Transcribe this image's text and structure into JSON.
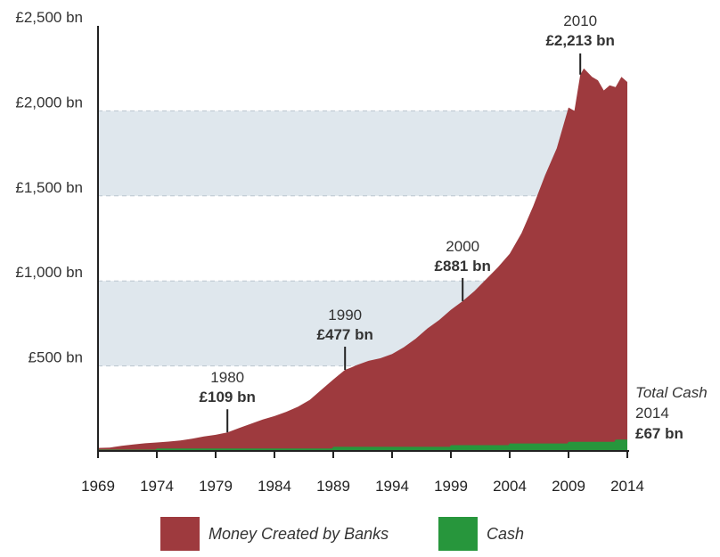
{
  "chart_data": {
    "type": "area",
    "title": "",
    "xlabel": "",
    "ylabel": "",
    "xlim": [
      1969,
      2014
    ],
    "ylim": [
      0,
      2500
    ],
    "y_ticks": [
      "£500 bn",
      "£1,000 bn",
      "£1,500 bn",
      "£2,000 bn",
      "£2,500 bn"
    ],
    "y_tick_values": [
      500,
      1000,
      1500,
      2000,
      2500
    ],
    "x_ticks": [
      "1969",
      "1974",
      "1979",
      "1984",
      "1989",
      "1994",
      "1999",
      "2004",
      "2009",
      "2014"
    ],
    "x_tick_values": [
      1969,
      1974,
      1979,
      1984,
      1989,
      1994,
      1999,
      2004,
      2009,
      2014
    ],
    "grid": "dashed horizontal, alternating shaded bands",
    "series": [
      {
        "name": "Money Created by Banks",
        "color": "#9e3a3e",
        "x": [
          1969,
          1970,
          1971,
          1972,
          1973,
          1974,
          1975,
          1976,
          1977,
          1978,
          1979,
          1980,
          1981,
          1982,
          1983,
          1984,
          1985,
          1986,
          1987,
          1988,
          1989,
          1990,
          1990.5,
          1991,
          1992,
          1993,
          1994,
          1995,
          1996,
          1997,
          1998,
          1999,
          2000,
          2001,
          2002,
          2003,
          2004,
          2005,
          2006,
          2007,
          2008,
          2009,
          2009.5,
          2010,
          2010.3,
          2011,
          2011.5,
          2012,
          2012.5,
          2013,
          2013.5,
          2014
        ],
        "values": [
          18,
          20,
          30,
          38,
          45,
          50,
          55,
          62,
          72,
          85,
          95,
          109,
          135,
          160,
          185,
          205,
          230,
          260,
          300,
          360,
          420,
          477,
          490,
          505,
          530,
          545,
          570,
          610,
          660,
          720,
          770,
          830,
          881,
          940,
          1010,
          1080,
          1160,
          1280,
          1440,
          1620,
          1780,
          2020,
          2000,
          2213,
          2250,
          2200,
          2180,
          2120,
          2150,
          2140,
          2200,
          2170
        ]
      },
      {
        "name": "Cash",
        "color": "#27963c",
        "x": [
          1969,
          1973.9,
          1974,
          1988.9,
          1989,
          1998.9,
          1999,
          2003.9,
          2004,
          2008.9,
          2009,
          2012.9,
          2013,
          2014
        ],
        "values": [
          8,
          8,
          14,
          14,
          24,
          24,
          34,
          34,
          44,
          44,
          54,
          54,
          67,
          67
        ]
      }
    ],
    "annotations": [
      {
        "year": "1980",
        "value": "£109 bn",
        "x": 1980,
        "y": 109
      },
      {
        "year": "1990",
        "value": "£477 bn",
        "x": 1990,
        "y": 477
      },
      {
        "year": "2000",
        "value": "£881 bn",
        "x": 2000,
        "y": 881
      },
      {
        "year": "2010",
        "value": "£2,213 bn",
        "x": 2010,
        "y": 2213
      }
    ],
    "cash_annotation": {
      "label": "Total Cash",
      "year": "2014",
      "value": "£67 bn"
    },
    "legend_position": "bottom"
  },
  "legend": [
    {
      "label": "Money Created by Banks",
      "color": "#9e3a3e"
    },
    {
      "label": "Cash",
      "color": "#27963c"
    }
  ],
  "colors": {
    "band": "#dfe7ed",
    "grid": "#bcc6cf",
    "axis": "#222222"
  }
}
